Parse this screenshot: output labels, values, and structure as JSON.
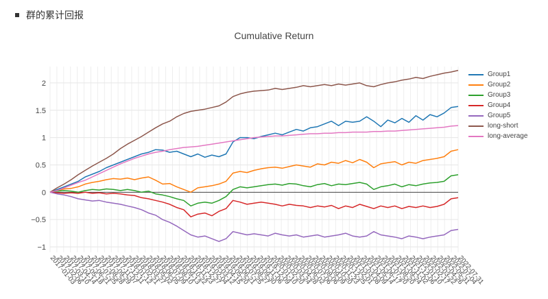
{
  "header": {
    "title": "群的累计回报"
  },
  "chart_data": {
    "type": "line",
    "title": "Cumulative Return",
    "xlabel": "",
    "ylabel": "",
    "ylim": [
      -1.1,
      2.3
    ],
    "yticks": [
      2,
      1.5,
      1,
      0.5,
      0,
      -0.5,
      -1
    ],
    "ytick_labels": [
      "2",
      "1.5",
      "1",
      "0.5",
      "0",
      "−0.5",
      "−1"
    ],
    "xtick_labels": [
      "2017-01-03",
      "2017-02-06",
      "2017-03-10",
      "2017-04-14",
      "2017-05-18",
      "2017-06-21",
      "2017-07-25",
      "2017-08-28",
      "2017-09-29",
      "2017-11-07",
      "2017-12-11",
      "2018-01-12",
      "2018-02-21",
      "2018-03-27",
      "2018-05-02",
      "2018-06-05",
      "2018-07-09",
      "2018-08-10",
      "2018-09-13",
      "2018-10-22",
      "2018-11-23",
      "2018-12-27",
      "2019-02-04",
      "2019-03-12",
      "2019-04-15",
      "2019-05-20",
      "2019-06-21",
      "2019-07-25",
      "2019-08-27",
      "2019-09-30",
      "2019-11-06",
      "2019-12-09",
      "2020-01-10",
      "2020-02-20",
      "2020-03-24",
      "2020-04-28",
      "2020-06-02",
      "2020-07-06",
      "2020-08-06",
      "2020-09-09",
      "2020-10-20",
      "2020-11-23",
      "2020-12-25",
      "2021-02-01",
      "2021-03-08",
      "2021-04-09",
      "2021-05-14",
      "2021-06-17",
      "2021-07-20",
      "2021-08-20",
      "2021-09-24",
      "2021-11-02",
      "2021-12-06",
      "2022-01-10",
      "2022-02-17",
      "2022-03-22",
      "2022-04-26",
      "2022-05-31",
      "2022-07-04",
      "2022-07-31"
    ],
    "x_positions": [
      0,
      0.5,
      1,
      1.5,
      2,
      2.5,
      3,
      3.5,
      4,
      4.5,
      5,
      5.5,
      5.5,
      6,
      6.5,
      7,
      7.5,
      8,
      8.5,
      9,
      9.5,
      10,
      10.5,
      11,
      11.5,
      12,
      12.5,
      13,
      13.5,
      14,
      14.5,
      15,
      15.5,
      16,
      16.5,
      17,
      17.5,
      18,
      18.5,
      19,
      19.5,
      20,
      20.5,
      21,
      21.5,
      22,
      22.5,
      23,
      23.5,
      24,
      24.5,
      25,
      25.5,
      26,
      26.5,
      27,
      27.5,
      28,
      28.5,
      29
    ],
    "x": [
      0,
      0.5,
      1,
      1.5,
      2,
      2.5,
      3,
      3.5,
      4,
      4.5,
      5,
      5.5,
      6,
      6.5,
      7,
      7.5,
      8,
      8.5,
      9,
      9.5,
      10,
      10.5,
      11,
      11.5,
      12,
      12.5,
      13,
      13.5,
      14,
      14.5,
      15,
      15.5,
      16,
      16.5,
      17,
      17.5,
      18,
      18.5,
      19,
      19.5,
      20,
      20.5,
      21,
      21.5,
      22,
      22.5,
      23,
      23.5,
      24,
      24.5,
      25,
      25.5,
      26,
      26.5,
      27,
      27.5,
      28,
      28.5,
      29
    ],
    "series": [
      {
        "name": "Group1",
        "color": "#1f77b4",
        "values": [
          0,
          0.05,
          0.1,
          0.15,
          0.2,
          0.28,
          0.33,
          0.38,
          0.45,
          0.5,
          0.55,
          0.6,
          0.65,
          0.7,
          0.73,
          0.78,
          0.77,
          0.73,
          0.75,
          0.7,
          0.65,
          0.7,
          0.64,
          0.68,
          0.65,
          0.7,
          0.92,
          1.0,
          1.0,
          0.98,
          1.02,
          1.05,
          1.08,
          1.05,
          1.1,
          1.15,
          1.12,
          1.18,
          1.2,
          1.25,
          1.3,
          1.22,
          1.3,
          1.28,
          1.3,
          1.38,
          1.3,
          1.2,
          1.32,
          1.27,
          1.35,
          1.28,
          1.4,
          1.32,
          1.42,
          1.38,
          1.45,
          1.55,
          1.57
        ]
      },
      {
        "name": "Group2",
        "color": "#ff7f0e",
        "values": [
          0,
          0.03,
          0.06,
          0.07,
          0.1,
          0.15,
          0.18,
          0.2,
          0.23,
          0.25,
          0.24,
          0.26,
          0.23,
          0.26,
          0.28,
          0.22,
          0.15,
          0.16,
          0.1,
          0.05,
          0.0,
          0.08,
          0.1,
          0.12,
          0.15,
          0.2,
          0.35,
          0.38,
          0.36,
          0.4,
          0.43,
          0.45,
          0.46,
          0.44,
          0.47,
          0.5,
          0.48,
          0.46,
          0.52,
          0.5,
          0.55,
          0.53,
          0.58,
          0.54,
          0.6,
          0.55,
          0.45,
          0.52,
          0.54,
          0.56,
          0.5,
          0.55,
          0.53,
          0.58,
          0.6,
          0.62,
          0.65,
          0.75,
          0.78
        ]
      },
      {
        "name": "Group3",
        "color": "#2ca02c",
        "values": [
          0,
          0.02,
          0.03,
          0.02,
          0.0,
          0.03,
          0.05,
          0.04,
          0.06,
          0.05,
          0.03,
          0.05,
          0.03,
          0.0,
          0.02,
          -0.03,
          -0.05,
          -0.08,
          -0.12,
          -0.15,
          -0.25,
          -0.2,
          -0.18,
          -0.2,
          -0.15,
          -0.08,
          0.05,
          0.1,
          0.08,
          0.1,
          0.12,
          0.14,
          0.15,
          0.13,
          0.16,
          0.15,
          0.12,
          0.1,
          0.14,
          0.16,
          0.12,
          0.15,
          0.14,
          0.16,
          0.18,
          0.15,
          0.05,
          0.1,
          0.12,
          0.15,
          0.1,
          0.14,
          0.12,
          0.15,
          0.17,
          0.18,
          0.2,
          0.3,
          0.32
        ]
      },
      {
        "name": "Group4",
        "color": "#d62728",
        "values": [
          0,
          -0.01,
          -0.02,
          -0.01,
          -0.02,
          0.0,
          -0.02,
          -0.01,
          -0.03,
          -0.02,
          -0.03,
          -0.05,
          -0.06,
          -0.1,
          -0.12,
          -0.15,
          -0.18,
          -0.22,
          -0.28,
          -0.32,
          -0.45,
          -0.4,
          -0.38,
          -0.43,
          -0.35,
          -0.3,
          -0.15,
          -0.18,
          -0.22,
          -0.2,
          -0.18,
          -0.2,
          -0.22,
          -0.25,
          -0.22,
          -0.24,
          -0.25,
          -0.28,
          -0.25,
          -0.27,
          -0.24,
          -0.3,
          -0.25,
          -0.28,
          -0.22,
          -0.26,
          -0.3,
          -0.25,
          -0.28,
          -0.25,
          -0.3,
          -0.26,
          -0.28,
          -0.25,
          -0.28,
          -0.26,
          -0.22,
          -0.12,
          -0.1
        ]
      },
      {
        "name": "Group5",
        "color": "#9467bd",
        "values": [
          0,
          -0.03,
          -0.05,
          -0.08,
          -0.12,
          -0.14,
          -0.16,
          -0.15,
          -0.18,
          -0.2,
          -0.22,
          -0.25,
          -0.28,
          -0.32,
          -0.38,
          -0.42,
          -0.5,
          -0.55,
          -0.62,
          -0.7,
          -0.78,
          -0.82,
          -0.8,
          -0.85,
          -0.9,
          -0.85,
          -0.72,
          -0.75,
          -0.78,
          -0.76,
          -0.78,
          -0.8,
          -0.75,
          -0.78,
          -0.8,
          -0.78,
          -0.82,
          -0.8,
          -0.78,
          -0.82,
          -0.8,
          -0.78,
          -0.75,
          -0.8,
          -0.82,
          -0.8,
          -0.72,
          -0.78,
          -0.8,
          -0.82,
          -0.85,
          -0.8,
          -0.82,
          -0.85,
          -0.82,
          -0.8,
          -0.78,
          -0.7,
          -0.68
        ]
      },
      {
        "name": "long-short",
        "color": "#8c564b",
        "values": [
          0,
          0.08,
          0.15,
          0.23,
          0.32,
          0.4,
          0.48,
          0.55,
          0.62,
          0.7,
          0.8,
          0.88,
          0.95,
          1.02,
          1.1,
          1.18,
          1.25,
          1.3,
          1.38,
          1.44,
          1.48,
          1.5,
          1.52,
          1.55,
          1.58,
          1.65,
          1.75,
          1.8,
          1.83,
          1.85,
          1.86,
          1.87,
          1.9,
          1.88,
          1.9,
          1.92,
          1.95,
          1.93,
          1.95,
          1.97,
          1.95,
          1.98,
          1.96,
          1.98,
          2.0,
          1.95,
          1.93,
          1.97,
          2.0,
          2.02,
          2.05,
          2.07,
          2.1,
          2.08,
          2.12,
          2.15,
          2.18,
          2.2,
          2.23
        ]
      },
      {
        "name": "long-average",
        "color": "#e377c2",
        "values": [
          0,
          0.03,
          0.08,
          0.13,
          0.18,
          0.22,
          0.28,
          0.34,
          0.4,
          0.46,
          0.52,
          0.57,
          0.62,
          0.66,
          0.7,
          0.73,
          0.75,
          0.78,
          0.8,
          0.82,
          0.83,
          0.84,
          0.86,
          0.88,
          0.9,
          0.92,
          0.94,
          0.96,
          0.98,
          1.0,
          1.01,
          1.02,
          1.03,
          1.03,
          1.04,
          1.05,
          1.06,
          1.07,
          1.07,
          1.08,
          1.08,
          1.09,
          1.09,
          1.1,
          1.1,
          1.1,
          1.11,
          1.11,
          1.12,
          1.12,
          1.13,
          1.14,
          1.15,
          1.16,
          1.17,
          1.18,
          1.19,
          1.21,
          1.22
        ]
      }
    ],
    "legend": "top-right",
    "grid": true
  }
}
